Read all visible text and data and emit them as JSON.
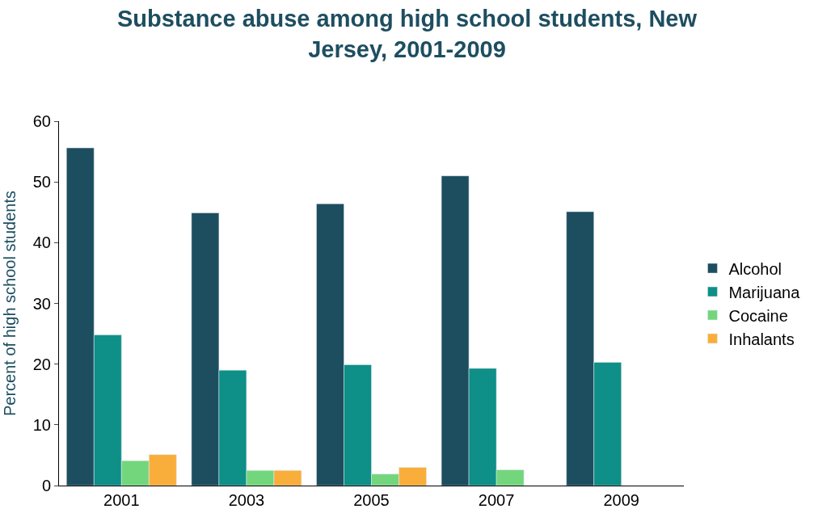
{
  "chart_data": {
    "type": "bar",
    "title": "Substance abuse among high school students, New Jersey, 2001-2009",
    "ylabel": "Percent of high school students",
    "categories": [
      "2001",
      "2003",
      "2005",
      "2007",
      "2009"
    ],
    "series": [
      {
        "name": "Alcohol",
        "color": "#1d4e60",
        "values": [
          55.6,
          44.9,
          46.4,
          51.0,
          45.1
        ]
      },
      {
        "name": "Marijuana",
        "color": "#0e8f87",
        "values": [
          24.8,
          19.0,
          19.9,
          19.3,
          20.3
        ]
      },
      {
        "name": "Cocaine",
        "color": "#74d67c",
        "values": [
          4.1,
          2.5,
          1.9,
          2.6,
          null
        ]
      },
      {
        "name": "Inhalants",
        "color": "#f9ae3b",
        "values": [
          5.1,
          2.5,
          3.0,
          null,
          null
        ]
      }
    ],
    "ylim": [
      0,
      60
    ],
    "yticks": [
      0,
      10,
      20,
      30,
      40,
      50,
      60
    ],
    "legend": "right"
  }
}
